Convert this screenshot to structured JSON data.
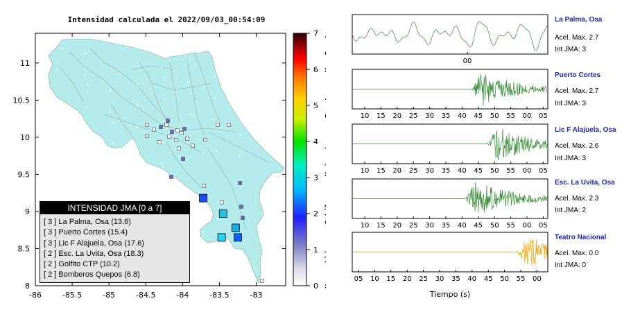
{
  "map": {
    "title": "Intensidad calculada el 2022/09/03_00:54:09",
    "lat_ticks": [
      "11",
      "10.5",
      "10",
      "9.5",
      "9",
      "8.5",
      "8"
    ],
    "lon_ticks": [
      "-86",
      "-85.5",
      "-85",
      "-84.5",
      "-84",
      "-83.5",
      "-83"
    ],
    "lat_range": [
      8,
      11.4
    ],
    "lon_range": [
      -86,
      -82.6
    ],
    "colorbar": {
      "ticks": [
        "0",
        "1",
        "2",
        "3",
        "4",
        "5",
        "6",
        "7"
      ],
      "labels": [
        "No sentido",
        "Debil",
        "Moderado",
        "Fuerte",
        "Muy Fuerte"
      ]
    },
    "colors": {
      "land": "#b4ecec",
      "roads": "#a0a0a0"
    },
    "station_markers": [
      {
        "name": "La Palma, Osa",
        "lon": -83.25,
        "lat": 8.65,
        "intensity": 3,
        "color": "#1060ff"
      },
      {
        "name": "Puerto Cortes",
        "lon": -83.28,
        "lat": 8.78,
        "intensity": 3,
        "color": "#10b0e8"
      },
      {
        "name": "Lic F Alajuela, Osa",
        "lon": -83.45,
        "lat": 8.97,
        "intensity": 3,
        "color": "#18c8e8"
      },
      {
        "name": "Esc. La Uvita, Osa",
        "lon": -83.72,
        "lat": 9.18,
        "intensity": 2,
        "color": "#1050ff"
      },
      {
        "name": "Golfito CTP",
        "lon": -83.47,
        "lat": 8.65,
        "intensity": 2,
        "color": "#20d8f0"
      }
    ]
  },
  "legend": {
    "header": "INTENSIDAD JMA [0 a 7]",
    "items": [
      "[ 3 ]  La Palma, Osa (13.6)",
      "[ 3 ]  Puerto Cortes (15.4)",
      "[ 3 ]  Lic F Alajuela, Osa (17.6)",
      "[ 2 ]  Esc. La Uvita, Osa (18.3)",
      "[ 2 ]  Golfito CTP (10.2)",
      "[ 2 ]  Bomberos Quepos (6.8)"
    ]
  },
  "waveforms": {
    "panels": [
      {
        "station": "La Palma, Osa",
        "accel": "Acel. Max. 2.7",
        "int": "Int JMA: 3",
        "ticks": [
          "00"
        ],
        "color": "#2e8b2e"
      },
      {
        "station": "Puerto Cortes",
        "accel": "Acel. Max. 2.7",
        "int": "Int JMA: 3",
        "ticks": [
          "10",
          "15",
          "20",
          "25",
          "30",
          "35",
          "40",
          "45",
          "50",
          "55",
          "00",
          "05"
        ],
        "color": "#2e8b2e"
      },
      {
        "station": "Lic F Alajuela, Osa",
        "accel": "Acel. Max. 2.6",
        "int": "Int JMA: 3",
        "ticks": [
          "10",
          "15",
          "20",
          "25",
          "30",
          "35",
          "40",
          "45",
          "50",
          "55",
          "00",
          "05"
        ],
        "color": "#2e8b2e"
      },
      {
        "station": "Esc. La Uvita, Osa",
        "accel": "Acel. Max. 2.3",
        "int": "Int JMA: 2",
        "ticks": [
          "10",
          "15",
          "20",
          "25",
          "30",
          "35",
          "40",
          "45",
          "50",
          "55",
          "00",
          "05"
        ],
        "color": "#2e8b2e"
      },
      {
        "station": "Teatro Nacional",
        "accel": "Acel. Max. 0.0",
        "int": "Int JMA: 0",
        "ticks": [
          "05",
          "10",
          "15",
          "20",
          "25",
          "30",
          "35",
          "40",
          "45",
          "50",
          "55",
          "00"
        ],
        "color": "#f0a000"
      }
    ],
    "xlabel": "Tiempo (s)"
  }
}
